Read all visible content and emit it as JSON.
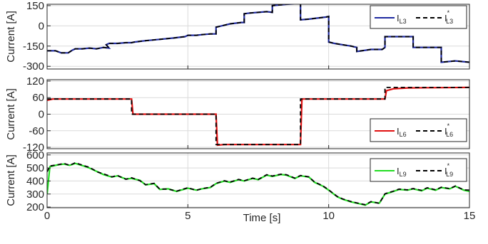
{
  "chart_data": [
    {
      "type": "line",
      "ylabel": "Current [A]",
      "xlim": [
        0,
        15
      ],
      "ylim": [
        -320,
        160
      ],
      "yticks": [
        150,
        0,
        -150,
        -300
      ],
      "xticks": [
        0,
        5,
        10,
        15
      ],
      "grid": true,
      "legend_placement": "top-right",
      "legend": {
        "actual_main": "I",
        "actual_sub": "L3",
        "ref_main": "I",
        "ref_sup": "*",
        "ref_sub": "L3"
      },
      "colors": {
        "actual": "#1f2aa0",
        "reference": "#000000"
      },
      "series": [
        {
          "role": "actual",
          "x": [
            0,
            0.3,
            0.5,
            0.75,
            0.9,
            1,
            1.25,
            1.5,
            1.75,
            2,
            2.2,
            2.1,
            2.2,
            2.5,
            2.8,
            3.0,
            3.1,
            3.3,
            3.5,
            4.0,
            4.5,
            4.9,
            5.0,
            5.3,
            5.5,
            5.8,
            6.0,
            6.0,
            6.3,
            6.5,
            6.9,
            7.0,
            7.0,
            7.2,
            7.5,
            7.8,
            8.0,
            8.0,
            8.5,
            8.9,
            9.0,
            9.0,
            9.3,
            9.5,
            9.9,
            10.0,
            10.0,
            10.2,
            10.5,
            10.8,
            11.0,
            11.0,
            11.5,
            11.9,
            12.0,
            12.0,
            12.5,
            12.9,
            13.0,
            13.0,
            13.5,
            13.9,
            14.0,
            14.0,
            14.5,
            15.0
          ],
          "y": [
            -185,
            -185,
            -200,
            -200,
            -180,
            -170,
            -170,
            -165,
            -170,
            -160,
            -165,
            -140,
            -130,
            -130,
            -125,
            -125,
            -120,
            -115,
            -110,
            -100,
            -90,
            -80,
            -70,
            -70,
            -65,
            -60,
            -60,
            -10,
            5,
            15,
            25,
            25,
            90,
            95,
            100,
            105,
            100,
            150,
            160,
            165,
            165,
            45,
            50,
            55,
            65,
            70,
            -120,
            -130,
            -140,
            -150,
            -160,
            -190,
            -175,
            -175,
            -160,
            -80,
            -80,
            -80,
            -80,
            -160,
            -160,
            -160,
            -160,
            -270,
            -260,
            -270
          ]
        },
        {
          "role": "reference",
          "x": [
            0,
            0.3,
            0.5,
            0.75,
            0.9,
            1,
            1.25,
            1.5,
            1.75,
            2,
            2.2,
            2.1,
            2.2,
            2.5,
            2.8,
            3.0,
            3.1,
            3.3,
            3.5,
            4.0,
            4.5,
            4.9,
            5.0,
            5.3,
            5.5,
            5.8,
            6.0,
            6.0,
            6.3,
            6.5,
            6.9,
            7.0,
            7.0,
            7.2,
            7.5,
            7.8,
            8.0,
            8.0,
            8.5,
            8.9,
            9.0,
            9.0,
            9.3,
            9.5,
            9.9,
            10.0,
            10.0,
            10.2,
            10.5,
            10.8,
            11.0,
            11.0,
            11.5,
            11.9,
            12.0,
            12.0,
            12.5,
            12.9,
            13.0,
            13.0,
            13.5,
            13.9,
            14.0,
            14.0,
            14.5,
            15.0
          ],
          "y": [
            -185,
            -185,
            -200,
            -200,
            -180,
            -170,
            -170,
            -165,
            -170,
            -160,
            -165,
            -140,
            -130,
            -130,
            -125,
            -125,
            -120,
            -115,
            -110,
            -100,
            -90,
            -80,
            -70,
            -70,
            -65,
            -60,
            -60,
            -10,
            5,
            15,
            25,
            25,
            90,
            95,
            100,
            105,
            100,
            150,
            160,
            165,
            165,
            45,
            50,
            55,
            65,
            70,
            -120,
            -130,
            -140,
            -150,
            -160,
            -190,
            -175,
            -175,
            -160,
            -80,
            -80,
            -80,
            -80,
            -160,
            -160,
            -160,
            -160,
            -270,
            -260,
            -270
          ]
        }
      ]
    },
    {
      "type": "line",
      "ylabel": "Current [A]",
      "xlim": [
        0,
        15
      ],
      "ylim": [
        -125,
        125
      ],
      "yticks": [
        120,
        60,
        0,
        -60,
        -120
      ],
      "xticks": [
        0,
        5,
        10,
        15
      ],
      "grid": true,
      "legend_placement": "bottom-right",
      "legend": {
        "actual_main": "I",
        "actual_sub": "L6",
        "ref_main": "I",
        "ref_sup": "*",
        "ref_sub": "L6"
      },
      "colors": {
        "actual": "#e01010",
        "reference": "#000000"
      },
      "series": [
        {
          "role": "actual",
          "x": [
            0,
            0.2,
            3.0,
            3.05,
            3.2,
            6.0,
            6.05,
            6.3,
            9.0,
            9.05,
            9.3,
            12.0,
            12.05,
            12.3,
            12.8,
            13.5,
            15.0
          ],
          "y": [
            50,
            55,
            55,
            0,
            0,
            0,
            -112,
            -110,
            -110,
            55,
            55,
            55,
            85,
            92,
            95,
            96,
            97
          ]
        },
        {
          "role": "reference",
          "x": [
            0,
            0.2,
            3.0,
            3.0,
            6.0,
            6.0,
            9.0,
            9.0,
            12.0,
            12.0,
            15.0
          ],
          "y": [
            55,
            55,
            55,
            0,
            0,
            -110,
            -110,
            55,
            55,
            97,
            97
          ]
        }
      ]
    },
    {
      "type": "line",
      "ylabel": "Current [A]",
      "xlim": [
        0,
        15
      ],
      "ylim": [
        195,
        615
      ],
      "yticks": [
        600,
        500,
        400,
        300,
        200
      ],
      "xticks": [
        0,
        5,
        10,
        15
      ],
      "xticklabels": [
        "0",
        "5",
        "10",
        "15"
      ],
      "xlabel": "Time [s]",
      "grid": true,
      "legend_placement": "top-right",
      "legend": {
        "actual_main": "I",
        "actual_sub": "L9",
        "ref_main": "I",
        "ref_sup": "*",
        "ref_sub": "L9"
      },
      "colors": {
        "actual": "#22dd22",
        "reference": "#000000"
      },
      "series": [
        {
          "role": "actual",
          "x": [
            0,
            0.1,
            0.4,
            0.6,
            0.8,
            1.0,
            1.3,
            1.5,
            1.8,
            2.0,
            2.3,
            2.5,
            2.8,
            3.0,
            3.3,
            3.5,
            3.8,
            4.0,
            4.3,
            4.6,
            5.0,
            5.3,
            5.5,
            5.8,
            6.0,
            6.3,
            6.5,
            6.8,
            7.0,
            7.3,
            7.5,
            7.8,
            8.0,
            8.3,
            8.5,
            8.8,
            9.0,
            9.3,
            9.5,
            9.8,
            10.0,
            10.3,
            10.5,
            10.8,
            11.0,
            11.3,
            11.5,
            11.8,
            12.0,
            12.3,
            12.5,
            12.8,
            13.0,
            13.3,
            13.5,
            13.8,
            14.0,
            14.3,
            14.5,
            14.8,
            15.0
          ],
          "y": [
            300,
            510,
            525,
            530,
            520,
            535,
            515,
            500,
            470,
            450,
            430,
            440,
            415,
            420,
            405,
            370,
            380,
            335,
            340,
            320,
            345,
            330,
            340,
            350,
            380,
            400,
            390,
            410,
            400,
            420,
            410,
            445,
            435,
            450,
            445,
            420,
            440,
            430,
            390,
            360,
            330,
            280,
            260,
            240,
            230,
            215,
            240,
            230,
            300,
            320,
            335,
            330,
            340,
            325,
            345,
            330,
            350,
            340,
            360,
            330,
            320
          ]
        },
        {
          "role": "reference",
          "x": [
            0,
            0.1,
            0.4,
            0.6,
            0.8,
            1.0,
            1.3,
            1.5,
            1.8,
            2.0,
            2.3,
            2.5,
            2.8,
            3.0,
            3.3,
            3.5,
            3.8,
            4.0,
            4.3,
            4.6,
            5.0,
            5.3,
            5.5,
            5.8,
            6.0,
            6.3,
            6.5,
            6.8,
            7.0,
            7.3,
            7.5,
            7.8,
            8.0,
            8.3,
            8.5,
            8.8,
            9.0,
            9.3,
            9.5,
            9.8,
            10.0,
            10.3,
            10.5,
            10.8,
            11.0,
            11.3,
            11.5,
            11.8,
            12.0,
            12.3,
            12.5,
            12.8,
            13.0,
            13.3,
            13.5,
            13.8,
            14.0,
            14.3,
            14.5,
            14.8,
            15.0
          ],
          "y": [
            470,
            515,
            525,
            535,
            520,
            540,
            518,
            505,
            468,
            455,
            432,
            442,
            413,
            425,
            402,
            372,
            382,
            338,
            338,
            322,
            348,
            328,
            342,
            352,
            382,
            402,
            392,
            412,
            402,
            422,
            412,
            448,
            438,
            452,
            448,
            422,
            442,
            432,
            392,
            362,
            332,
            282,
            262,
            242,
            232,
            218,
            242,
            228,
            302,
            322,
            338,
            332,
            342,
            328,
            348,
            332,
            352,
            342,
            362,
            332,
            330
          ]
        }
      ]
    }
  ]
}
